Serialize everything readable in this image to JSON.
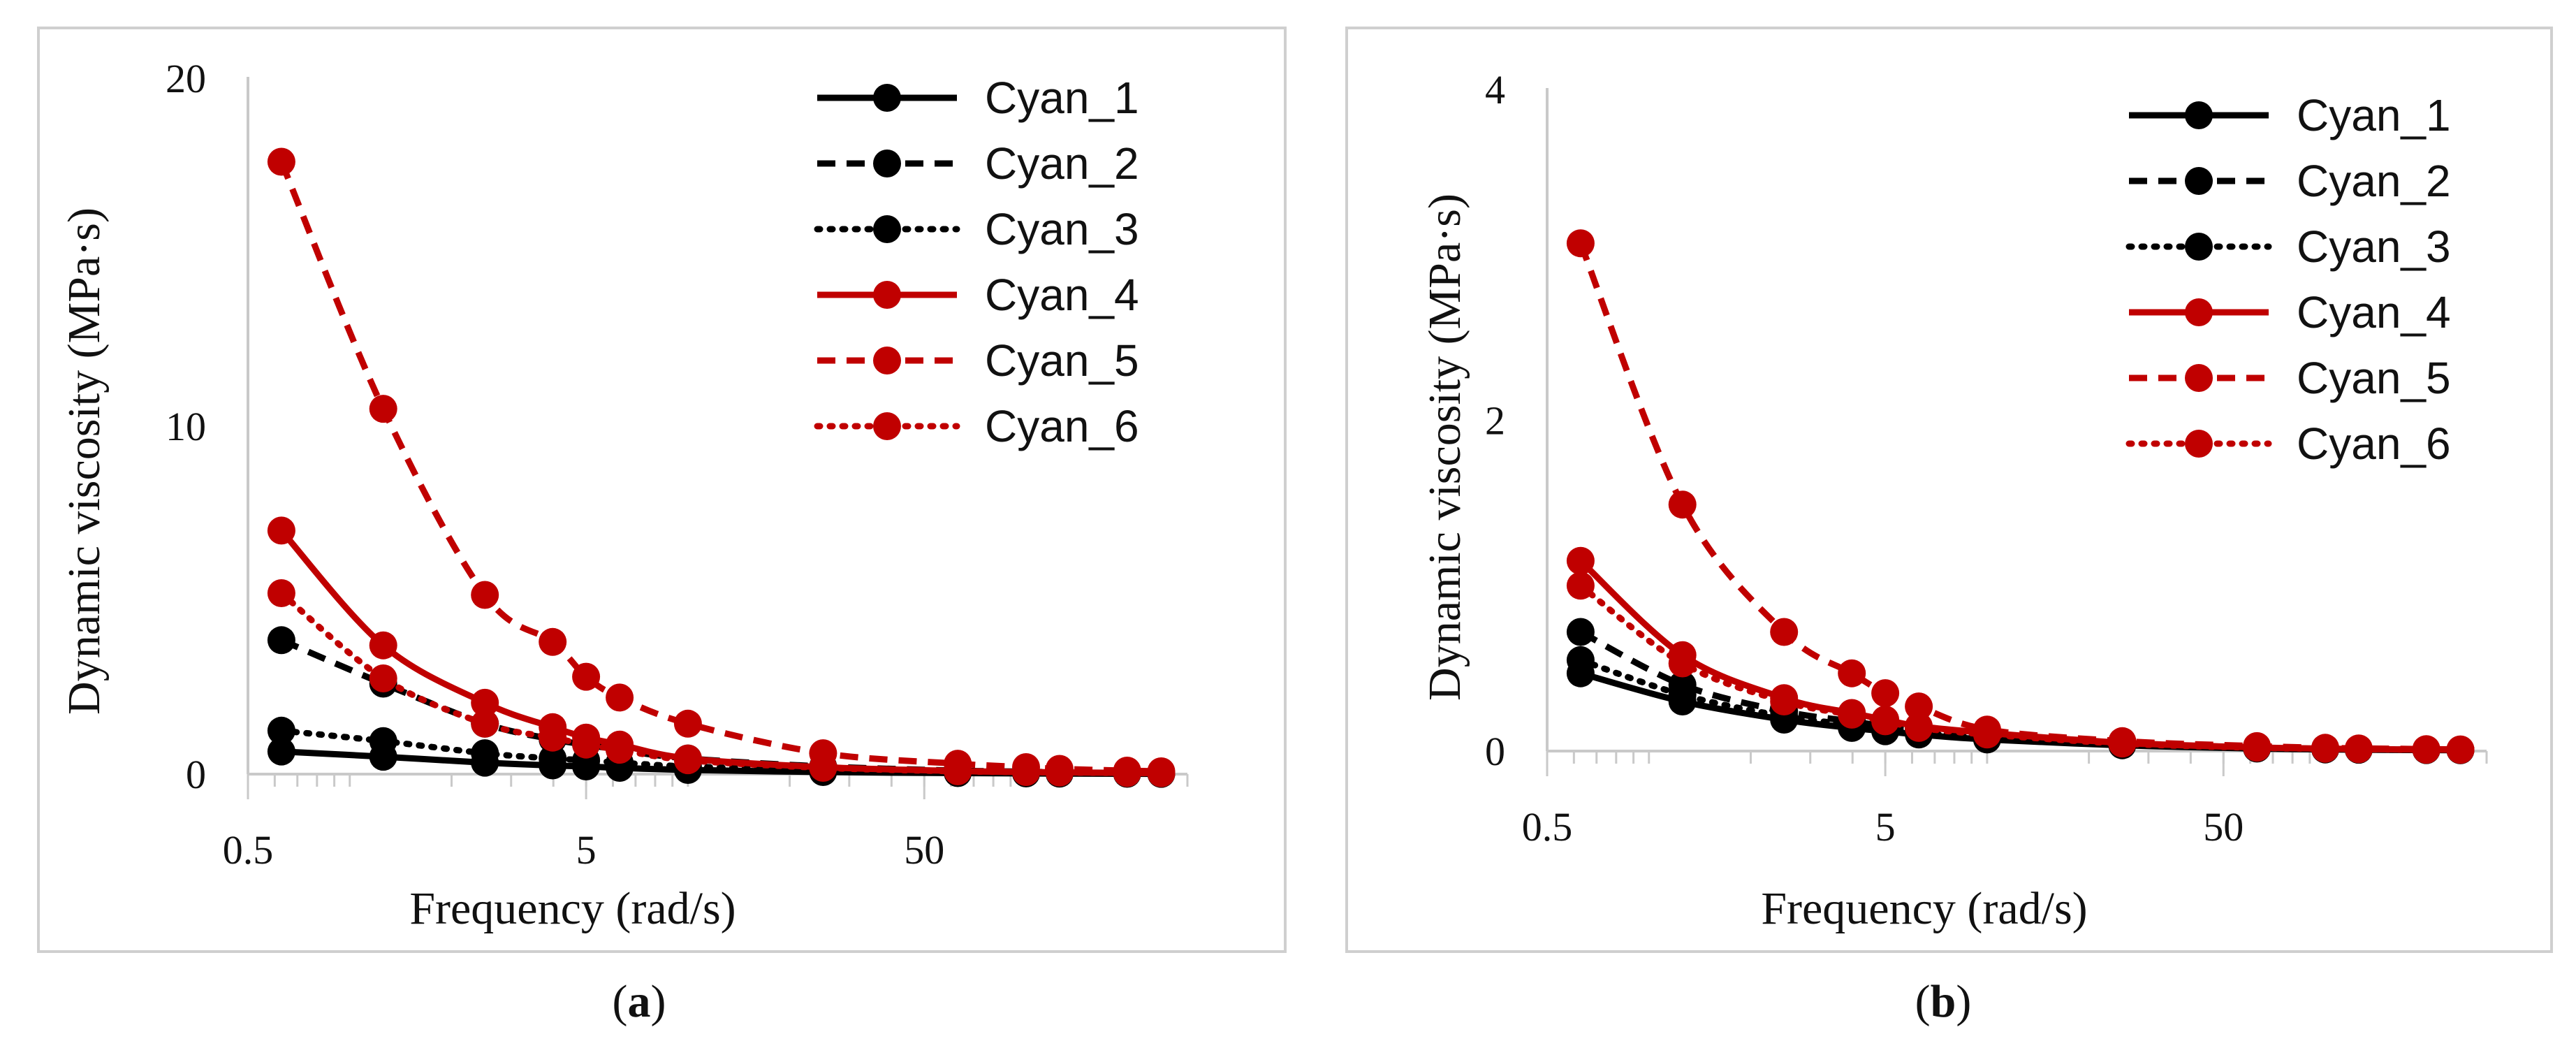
{
  "chart_data": [
    {
      "type": "line",
      "caption_open": "(",
      "caption_letter": "a",
      "caption_close": ")",
      "xlabel": "Frequency (rad/s)",
      "ylabel": "Dynamic viscosity (MPa·s)",
      "xscale": "log",
      "xlim": [
        0.5,
        300
      ],
      "ylim": [
        0,
        20
      ],
      "xticks": [
        0.5,
        5,
        50
      ],
      "xtick_labels": [
        "0.5",
        "5",
        "50"
      ],
      "yticks": [
        0,
        10,
        20
      ],
      "ytick_labels": [
        "0",
        "10",
        "20"
      ],
      "x": [
        0.628,
        1.256,
        2.51,
        3.98,
        5.0,
        6.28,
        10.0,
        25.1,
        62.8,
        100.0,
        125.6,
        199.0,
        251.0
      ],
      "legend_position": "top-right",
      "series": [
        {
          "name": "Cyan_1",
          "color": "#000000",
          "style": "solid",
          "values": [
            0.65,
            0.5,
            0.33,
            0.25,
            0.22,
            0.18,
            0.12,
            0.06,
            0.03,
            0.02,
            0.015,
            0.01,
            0.008
          ]
        },
        {
          "name": "Cyan_2",
          "color": "#000000",
          "style": "dashed",
          "values": [
            3.85,
            2.6,
            1.45,
            1.0,
            0.85,
            0.7,
            0.45,
            0.22,
            0.1,
            0.07,
            0.05,
            0.035,
            0.03
          ]
        },
        {
          "name": "Cyan_3",
          "color": "#000000",
          "style": "dotted",
          "values": [
            1.25,
            0.95,
            0.6,
            0.45,
            0.4,
            0.33,
            0.22,
            0.11,
            0.05,
            0.035,
            0.028,
            0.02,
            0.015
          ]
        },
        {
          "name": "Cyan_4",
          "color": "#c00000",
          "style": "solid",
          "values": [
            7.0,
            3.7,
            2.05,
            1.35,
            1.05,
            0.85,
            0.45,
            0.2,
            0.09,
            0.06,
            0.05,
            0.035,
            0.03
          ]
        },
        {
          "name": "Cyan_5",
          "color": "#c00000",
          "style": "dashed",
          "values": [
            17.6,
            10.5,
            5.15,
            3.8,
            2.8,
            2.2,
            1.45,
            0.6,
            0.3,
            0.2,
            0.15,
            0.1,
            0.08
          ]
        },
        {
          "name": "Cyan_6",
          "color": "#c00000",
          "style": "dotted",
          "values": [
            5.2,
            2.75,
            1.45,
            1.05,
            0.85,
            0.7,
            0.4,
            0.18,
            0.08,
            0.06,
            0.045,
            0.03,
            0.025
          ]
        }
      ]
    },
    {
      "type": "line",
      "caption_open": "(",
      "caption_letter": "b",
      "caption_close": ")",
      "xlabel": "Frequency (rad/s)",
      "ylabel": "Dynamic viscosity (MPa·s)",
      "xscale": "log",
      "xlim": [
        0.5,
        300
      ],
      "ylim": [
        0,
        4
      ],
      "xticks": [
        0.5,
        5,
        50
      ],
      "xtick_labels": [
        "0.5",
        "5",
        "50"
      ],
      "yticks": [
        0,
        2,
        4
      ],
      "ytick_labels": [
        "0",
        "2",
        "4"
      ],
      "x": [
        0.628,
        1.256,
        2.51,
        3.98,
        5.0,
        6.28,
        10.0,
        25.1,
        62.8,
        100.0,
        125.6,
        199.0,
        251.0
      ],
      "legend_position": "top-right",
      "series": [
        {
          "name": "Cyan_1",
          "color": "#000000",
          "style": "solid",
          "values": [
            0.47,
            0.3,
            0.19,
            0.14,
            0.12,
            0.1,
            0.07,
            0.035,
            0.015,
            0.01,
            0.008,
            0.006,
            0.005
          ]
        },
        {
          "name": "Cyan_2",
          "color": "#000000",
          "style": "dashed",
          "values": [
            0.72,
            0.4,
            0.24,
            0.18,
            0.15,
            0.13,
            0.09,
            0.045,
            0.02,
            0.014,
            0.011,
            0.008,
            0.007
          ]
        },
        {
          "name": "Cyan_3",
          "color": "#000000",
          "style": "dotted",
          "values": [
            0.55,
            0.34,
            0.21,
            0.16,
            0.13,
            0.11,
            0.08,
            0.04,
            0.018,
            0.012,
            0.01,
            0.007,
            0.006
          ]
        },
        {
          "name": "Cyan_4",
          "color": "#c00000",
          "style": "solid",
          "values": [
            1.15,
            0.58,
            0.32,
            0.23,
            0.19,
            0.15,
            0.11,
            0.05,
            0.022,
            0.015,
            0.012,
            0.009,
            0.008
          ]
        },
        {
          "name": "Cyan_5",
          "color": "#c00000",
          "style": "dashed",
          "values": [
            3.07,
            1.49,
            0.72,
            0.47,
            0.35,
            0.27,
            0.13,
            0.06,
            0.03,
            0.02,
            0.016,
            0.012,
            0.01
          ]
        },
        {
          "name": "Cyan_6",
          "color": "#c00000",
          "style": "dotted",
          "values": [
            1.0,
            0.53,
            0.3,
            0.22,
            0.18,
            0.14,
            0.1,
            0.045,
            0.02,
            0.014,
            0.011,
            0.008,
            0.007
          ]
        }
      ]
    }
  ]
}
